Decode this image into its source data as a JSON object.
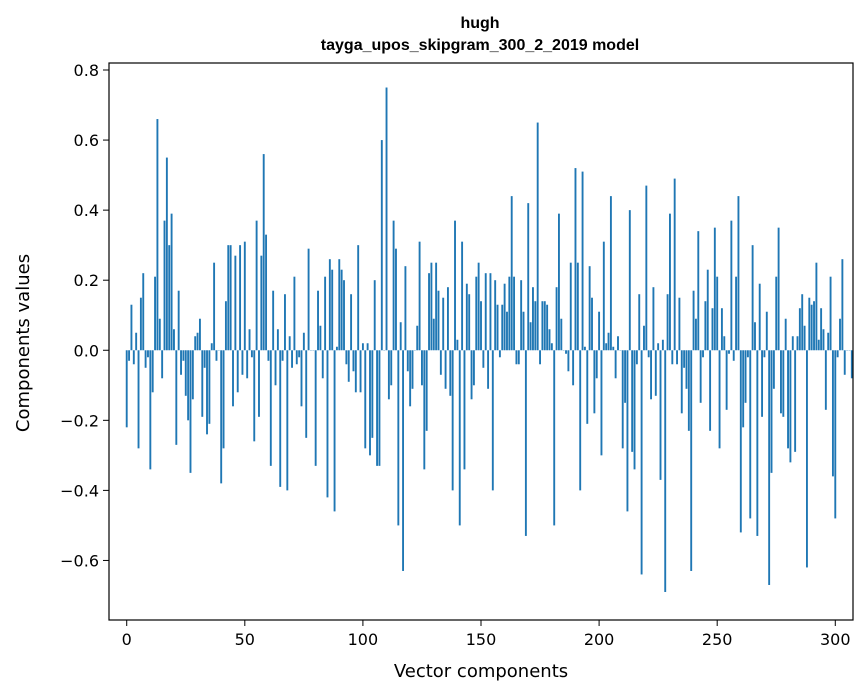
{
  "chart_data": {
    "type": "bar",
    "title": "hugh",
    "subtitle": "tayga_upos_skipgram_300_2_2019 model",
    "xlabel": "Vector components",
    "ylabel": "Components values",
    "xlim": [
      -7.5,
      307.5
    ],
    "ylim": [
      -0.77,
      0.82
    ],
    "xticks": [
      0,
      50,
      100,
      150,
      200,
      250,
      300
    ],
    "yticks": [
      -0.6,
      -0.4,
      -0.2,
      0.0,
      0.2,
      0.4,
      0.6,
      0.8
    ],
    "ytick_labels": [
      "−0.6",
      "−0.4",
      "−0.2",
      "0.0",
      "0.2",
      "0.4",
      "0.6",
      "0.8"
    ],
    "xtick_labels": [
      "0",
      "50",
      "100",
      "150",
      "200",
      "250",
      "300"
    ],
    "bar_color": "#1f77b4",
    "values": [
      -0.22,
      -0.03,
      0.13,
      -0.04,
      0.05,
      -0.28,
      0.15,
      0.22,
      -0.05,
      -0.02,
      -0.34,
      -0.12,
      0.21,
      0.66,
      0.09,
      -0.08,
      0.37,
      0.55,
      0.3,
      0.39,
      0.06,
      -0.27,
      0.17,
      -0.07,
      -0.03,
      -0.13,
      -0.2,
      -0.35,
      -0.14,
      0.04,
      0.05,
      0.09,
      -0.19,
      -0.05,
      -0.24,
      -0.21,
      0.02,
      0.25,
      -0.03,
      0.0,
      -0.38,
      -0.28,
      0.14,
      0.3,
      0.3,
      -0.16,
      0.27,
      -0.12,
      0.3,
      -0.07,
      0.31,
      -0.08,
      0.06,
      -0.02,
      -0.26,
      0.37,
      -0.19,
      0.27,
      0.56,
      0.33,
      -0.03,
      -0.33,
      0.17,
      -0.1,
      0.06,
      -0.39,
      -0.03,
      0.16,
      -0.4,
      0.04,
      -0.05,
      0.21,
      -0.04,
      -0.02,
      -0.16,
      0.05,
      -0.25,
      0.29,
      0.0,
      0.0,
      -0.33,
      0.17,
      0.07,
      -0.08,
      0.21,
      -0.42,
      0.26,
      0.23,
      -0.46,
      0.01,
      0.26,
      0.23,
      0.2,
      -0.04,
      -0.09,
      0.16,
      -0.06,
      -0.12,
      0.3,
      -0.12,
      0.02,
      -0.28,
      0.02,
      -0.3,
      -0.25,
      0.2,
      -0.33,
      -0.33,
      0.6,
      0.0,
      0.75,
      -0.14,
      -0.1,
      0.37,
      0.29,
      -0.5,
      0.08,
      -0.63,
      0.24,
      -0.06,
      -0.16,
      -0.11,
      0.0,
      0.07,
      0.31,
      -0.1,
      -0.34,
      -0.23,
      0.22,
      0.25,
      0.09,
      0.25,
      0.17,
      -0.07,
      0.15,
      -0.11,
      0.18,
      -0.13,
      -0.4,
      0.37,
      0.03,
      -0.5,
      0.31,
      -0.34,
      0.19,
      0.16,
      -0.14,
      -0.1,
      0.21,
      0.25,
      0.14,
      -0.05,
      0.22,
      -0.11,
      0.22,
      -0.4,
      0.2,
      0.13,
      -0.02,
      0.13,
      0.19,
      0.11,
      0.21,
      0.44,
      0.21,
      -0.04,
      -0.04,
      0.2,
      0.11,
      -0.53,
      0.42,
      0.08,
      0.18,
      0.14,
      0.65,
      -0.04,
      0.14,
      0.14,
      0.13,
      0.06,
      0.02,
      -0.5,
      0.18,
      0.39,
      0.09,
      0.0,
      -0.01,
      -0.06,
      0.25,
      -0.1,
      0.52,
      0.25,
      -0.4,
      0.51,
      0.01,
      -0.21,
      0.24,
      0.15,
      -0.18,
      -0.08,
      0.11,
      -0.3,
      0.31,
      0.02,
      0.05,
      0.44,
      0.01,
      -0.08,
      0.04,
      0.0,
      -0.28,
      -0.15,
      -0.46,
      0.4,
      -0.29,
      -0.34,
      -0.04,
      0.16,
      -0.64,
      0.07,
      0.47,
      -0.02,
      -0.14,
      0.18,
      -0.13,
      0.02,
      -0.37,
      0.03,
      -0.69,
      0.16,
      0.39,
      -0.04,
      0.49,
      -0.04,
      0.15,
      -0.18,
      -0.05,
      -0.11,
      -0.23,
      -0.63,
      0.17,
      0.09,
      0.34,
      -0.15,
      -0.02,
      0.14,
      0.23,
      -0.23,
      0.12,
      0.35,
      0.21,
      -0.28,
      0.12,
      0.04,
      -0.17,
      -0.01,
      0.37,
      -0.03,
      0.21,
      0.44,
      -0.52,
      -0.22,
      -0.15,
      -0.02,
      -0.48,
      0.3,
      0.08,
      -0.53,
      0.19,
      -0.19,
      -0.02,
      0.11,
      -0.67,
      -0.35,
      -0.11,
      0.21,
      0.35,
      -0.18,
      -0.19,
      0.09,
      -0.28,
      -0.32,
      0.04,
      -0.29,
      0.04,
      0.12,
      0.16,
      0.07,
      -0.62,
      0.15,
      0.13,
      0.14,
      0.25,
      0.03,
      0.12,
      0.06,
      -0.17,
      0.05,
      0.21,
      -0.36,
      -0.48,
      -0.02,
      0.09,
      0.26,
      -0.07,
      0.0,
      0.0,
      -0.08
    ]
  }
}
